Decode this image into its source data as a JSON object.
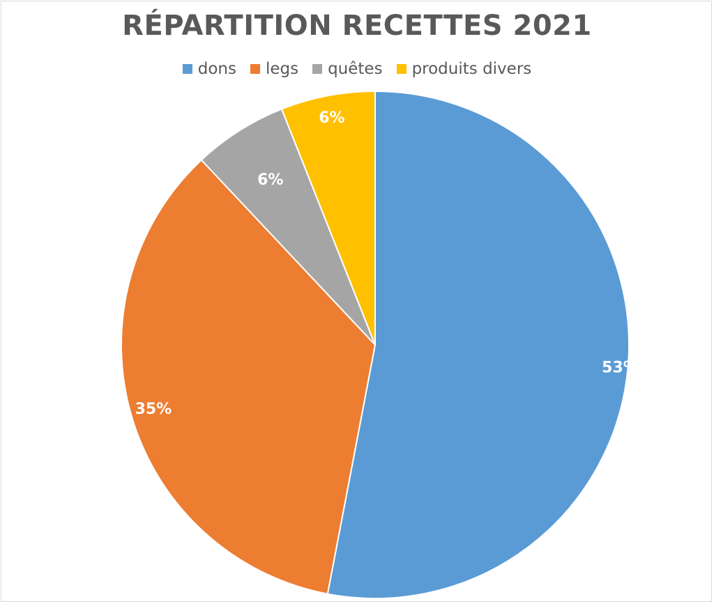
{
  "chart_data": {
    "type": "pie",
    "title": "RÉPARTITION RECETTES 2021",
    "legend_position": "top",
    "categories": [
      "dons",
      "legs",
      "quêtes",
      "produits divers"
    ],
    "values": [
      53,
      35,
      6,
      6
    ],
    "labels": [
      "53%",
      "35%",
      "6%",
      "6%"
    ],
    "colors": [
      "#5b9bd5",
      "#ed7d31",
      "#a5a5a5",
      "#ffc000"
    ]
  }
}
